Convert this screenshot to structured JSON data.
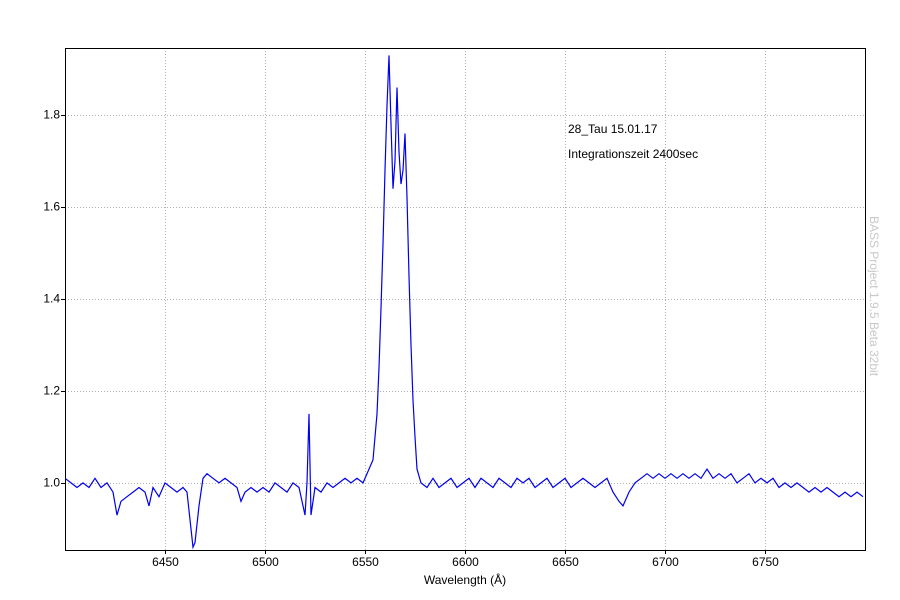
{
  "chart_data": {
    "type": "line",
    "xlabel": "Wavelength (Å)",
    "annotations": [
      "28_Tau 15.01.17",
      "Integrationszeit 2400sec"
    ],
    "watermark": "BASS Project 1.9.5 Beta 32bit",
    "color": "#0000ee",
    "grid": true,
    "xlim": [
      6400,
      6800
    ],
    "xticks": [
      6450,
      6500,
      6550,
      6600,
      6650,
      6700,
      6750
    ],
    "ylim": [
      0.854,
      1.946
    ],
    "yticks": [
      {
        "value": 1,
        "label": "1.0"
      },
      1.2,
      1.4,
      1.6,
      1.8
    ],
    "x": [
      6400,
      6403,
      6406,
      6409,
      6412,
      6415,
      6418,
      6421,
      6424,
      6426,
      6428,
      6431,
      6434,
      6437,
      6440,
      6442,
      6444,
      6447,
      6450,
      6453,
      6456,
      6459,
      6461,
      6463,
      6464,
      6465,
      6467,
      6469,
      6471,
      6474,
      6477,
      6480,
      6483,
      6486,
      6488,
      6490,
      6493,
      6496,
      6499,
      6502,
      6505,
      6508,
      6511,
      6514,
      6517,
      6519,
      6520,
      6521,
      6522,
      6523,
      6525,
      6528,
      6531,
      6534,
      6537,
      6540,
      6543,
      6546,
      6549,
      6552,
      6554,
      6555,
      6556,
      6557,
      6558,
      6559,
      6560,
      6561,
      6562,
      6563,
      6564,
      6565,
      6566,
      6567,
      6568,
      6569,
      6570,
      6571,
      6572,
      6573,
      6574,
      6575,
      6576,
      6578,
      6581,
      6584,
      6587,
      6590,
      6593,
      6596,
      6599,
      6602,
      6605,
      6608,
      6611,
      6614,
      6617,
      6620,
      6623,
      6626,
      6629,
      6632,
      6635,
      6638,
      6641,
      6644,
      6647,
      6650,
      6653,
      6656,
      6659,
      6662,
      6665,
      6668,
      6671,
      6674,
      6677,
      6679,
      6682,
      6685,
      6688,
      6691,
      6694,
      6697,
      6700,
      6703,
      6706,
      6709,
      6712,
      6715,
      6718,
      6721,
      6724,
      6727,
      6730,
      6733,
      6736,
      6739,
      6742,
      6745,
      6748,
      6751,
      6754,
      6757,
      6760,
      6763,
      6766,
      6769,
      6772,
      6775,
      6778,
      6781,
      6784,
      6787,
      6790,
      6793,
      6796,
      6799
    ],
    "values": [
      1.01,
      1.0,
      0.99,
      1.0,
      0.99,
      1.01,
      0.99,
      1.0,
      0.98,
      0.93,
      0.96,
      0.97,
      0.98,
      0.99,
      0.98,
      0.95,
      0.99,
      0.97,
      1.0,
      0.99,
      0.98,
      0.99,
      0.98,
      0.9,
      0.86,
      0.87,
      0.95,
      1.01,
      1.02,
      1.01,
      1.0,
      1.01,
      1.0,
      0.99,
      0.96,
      0.98,
      0.99,
      0.98,
      0.99,
      0.98,
      1.0,
      0.99,
      0.98,
      1.0,
      0.99,
      0.95,
      0.93,
      1.0,
      1.15,
      0.93,
      0.99,
      0.98,
      1.0,
      0.99,
      1.0,
      1.01,
      1.0,
      1.01,
      1.0,
      1.03,
      1.05,
      1.1,
      1.15,
      1.25,
      1.38,
      1.52,
      1.68,
      1.82,
      1.93,
      1.78,
      1.64,
      1.7,
      1.86,
      1.72,
      1.65,
      1.68,
      1.76,
      1.62,
      1.45,
      1.3,
      1.18,
      1.1,
      1.03,
      1.0,
      0.99,
      1.01,
      0.99,
      1.0,
      1.01,
      0.99,
      1.0,
      1.01,
      0.99,
      1.01,
      1.0,
      0.99,
      1.01,
      1.0,
      0.99,
      1.01,
      1.0,
      1.01,
      0.99,
      1.0,
      1.01,
      0.99,
      1.0,
      1.01,
      0.99,
      1.0,
      1.01,
      1.0,
      0.99,
      1.0,
      1.01,
      0.98,
      0.96,
      0.95,
      0.98,
      1.0,
      1.01,
      1.02,
      1.01,
      1.02,
      1.01,
      1.02,
      1.01,
      1.02,
      1.01,
      1.02,
      1.01,
      1.03,
      1.01,
      1.02,
      1.01,
      1.02,
      1.0,
      1.01,
      1.02,
      1.0,
      1.01,
      1.0,
      1.01,
      0.99,
      1.0,
      0.99,
      1.0,
      0.99,
      0.98,
      0.99,
      0.98,
      0.99,
      0.98,
      0.97,
      0.98,
      0.97,
      0.98,
      0.97
    ]
  }
}
